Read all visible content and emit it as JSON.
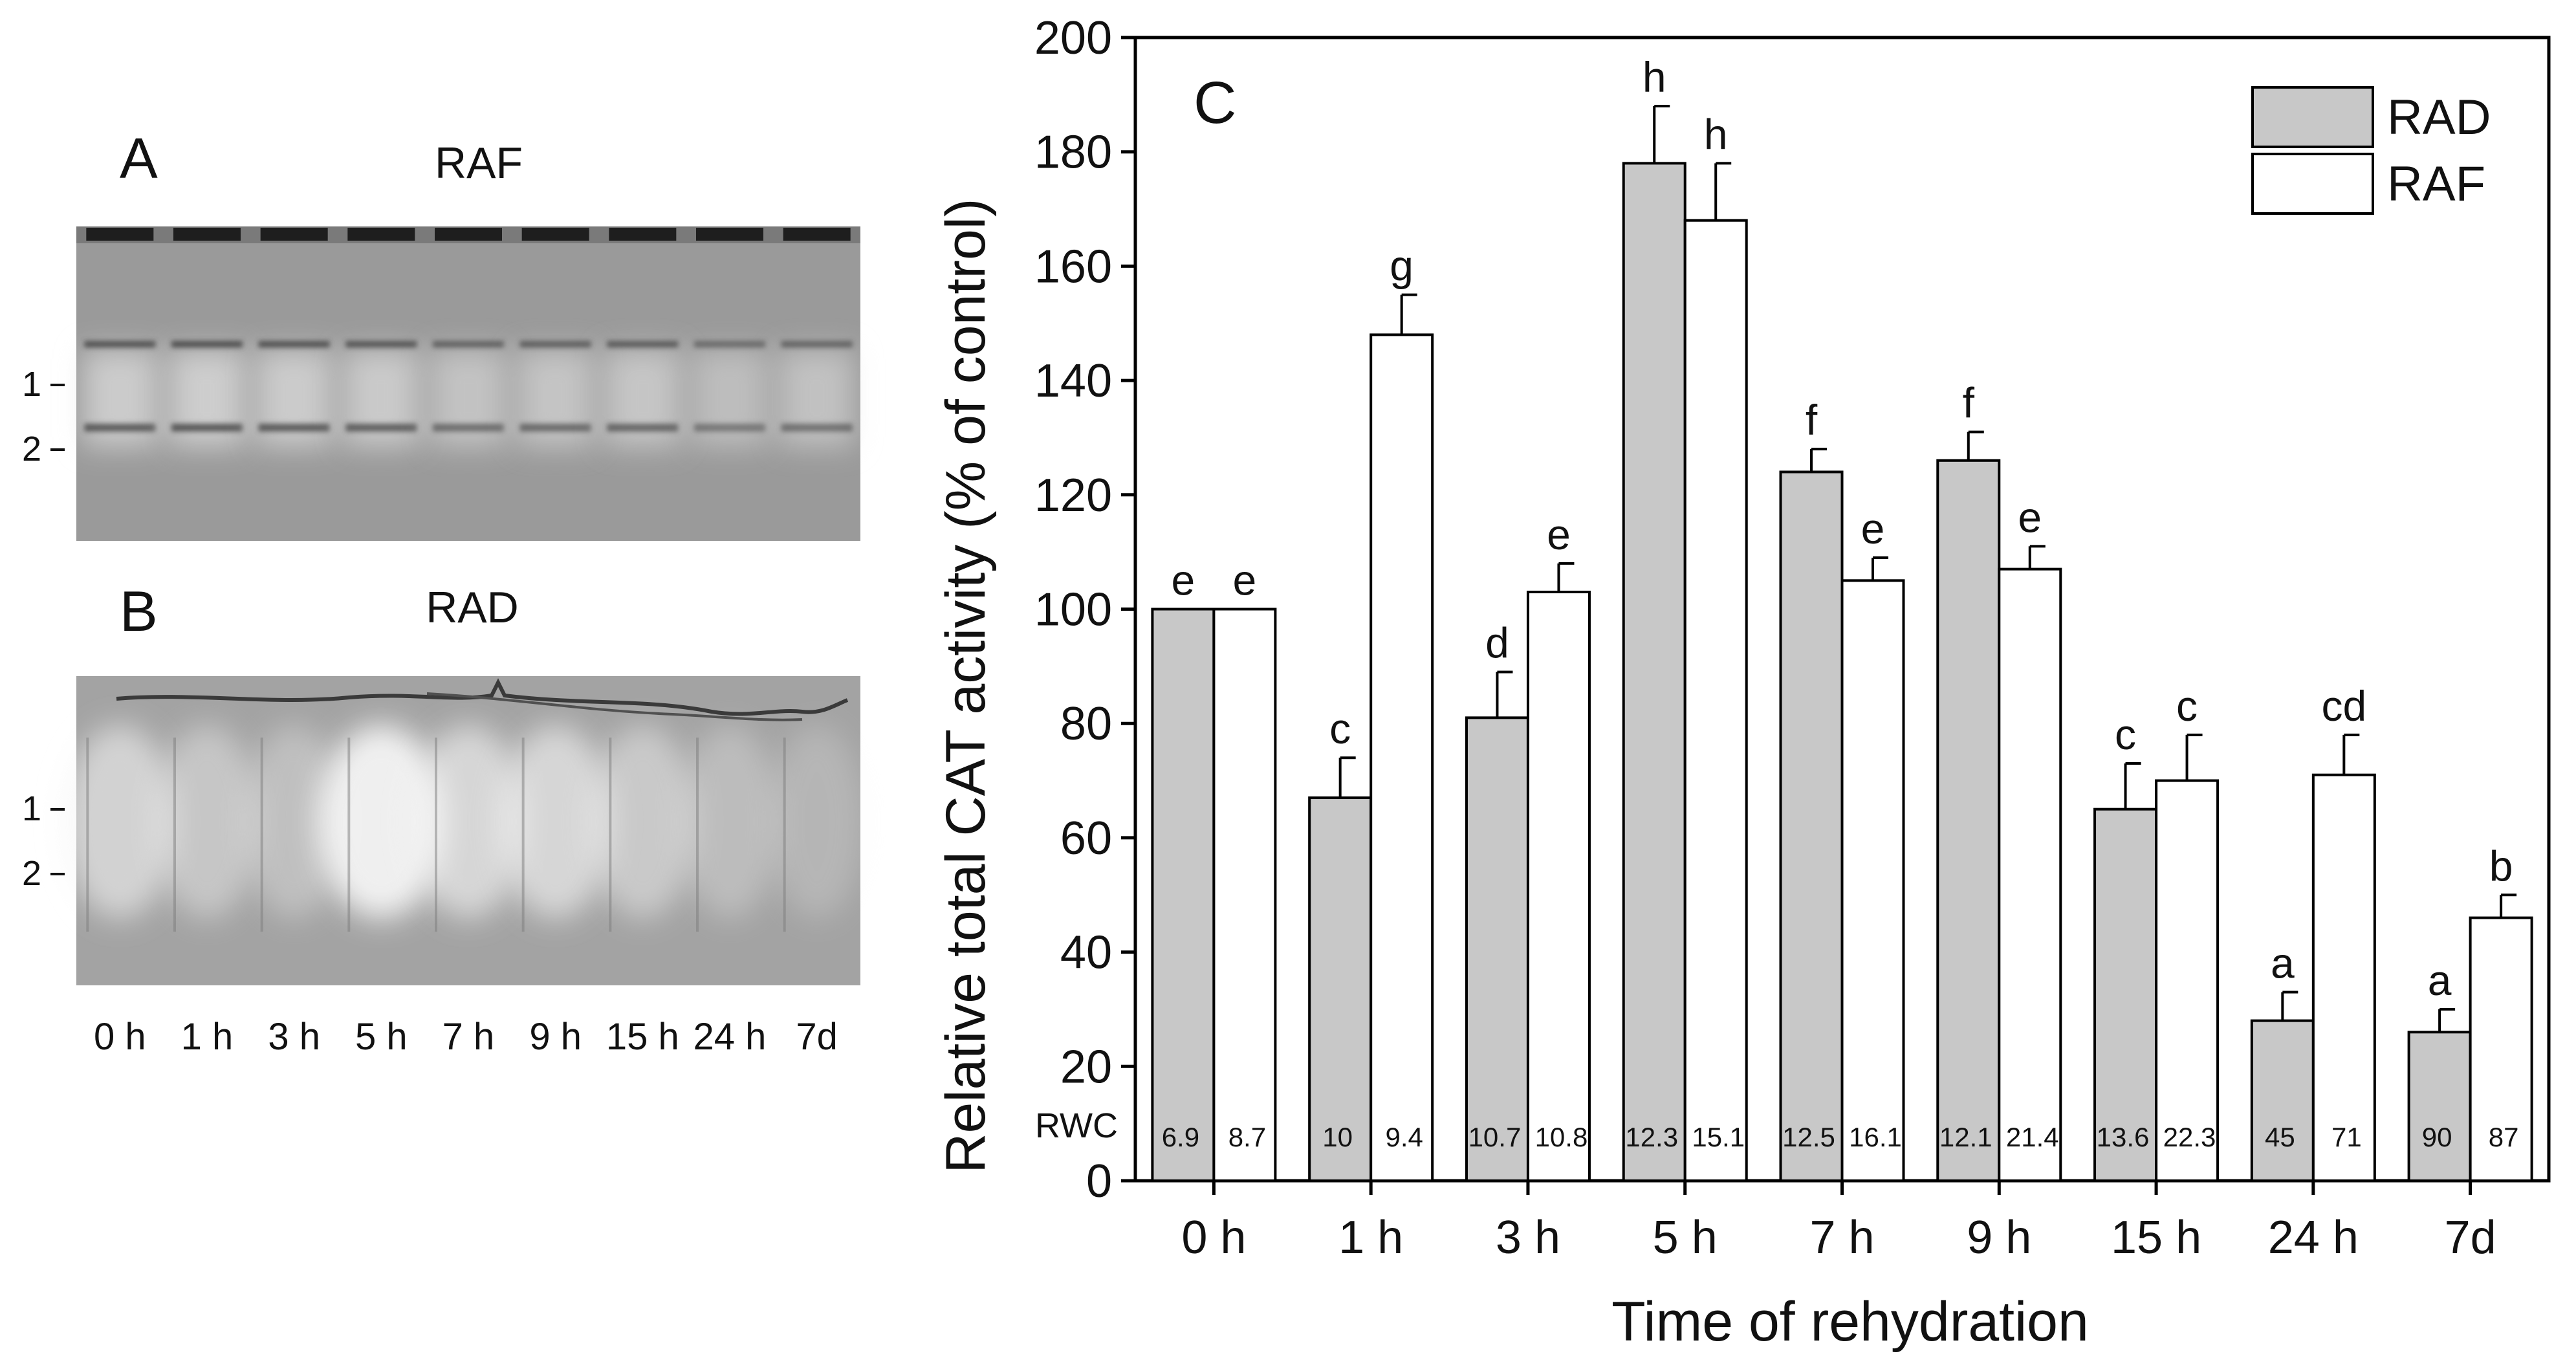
{
  "panel_a": {
    "letter": "A",
    "title": "RAF",
    "band_labels": [
      "1",
      "2"
    ],
    "band_intensity": [
      0.85,
      0.9,
      0.85,
      0.8,
      0.6,
      0.65,
      0.7,
      0.45,
      0.55
    ]
  },
  "panel_b": {
    "letter": "B",
    "title": "RAD",
    "band_labels": [
      "1",
      "2"
    ],
    "smear_intensity": [
      0.55,
      0.35,
      0.25,
      1.0,
      0.6,
      0.6,
      0.4,
      0.2,
      0.1
    ]
  },
  "gel_lanes": [
    "0 h",
    "1 h",
    "3 h",
    "5 h",
    "7 h",
    "9 h",
    "15 h",
    "24 h",
    "7d"
  ],
  "colors": {
    "rad_fill": "#c8c8c8",
    "raf_fill": "#ffffff",
    "gel_bg": "#9b9b9b",
    "gel_band": "#4a4a4a"
  },
  "chart_data": {
    "type": "bar",
    "panel_letter": "C",
    "categories": [
      "0 h",
      "1 h",
      "3 h",
      "5 h",
      "7 h",
      "9 h",
      "15 h",
      "24 h",
      "7d"
    ],
    "series": [
      {
        "name": "RAD",
        "values": [
          100,
          67,
          81,
          178,
          124,
          126,
          65,
          28,
          26
        ],
        "errors": [
          0,
          7,
          8,
          10,
          4,
          5,
          8,
          5,
          4
        ],
        "letters": [
          "e",
          "c",
          "d",
          "h",
          "f",
          "f",
          "c",
          "a",
          "a"
        ],
        "rwc": [
          "6.9",
          "10",
          "10.7",
          "12.3",
          "12.5",
          "12.1",
          "13.6",
          "45",
          "90"
        ]
      },
      {
        "name": "RAF",
        "values": [
          100,
          148,
          103,
          168,
          105,
          107,
          70,
          71,
          46
        ],
        "errors": [
          0,
          7,
          5,
          10,
          4,
          4,
          8,
          7,
          4
        ],
        "letters": [
          "e",
          "g",
          "e",
          "h",
          "e",
          "e",
          "c",
          "cd",
          "b"
        ],
        "rwc": [
          "8.7",
          "9.4",
          "10.8",
          "15.1",
          "16.1",
          "21.4",
          "22.3",
          "71",
          "87"
        ]
      }
    ],
    "rwc_label": "RWC",
    "xlabel": "Time of rehydration",
    "ylabel": "Relative total CAT activity (% of control)",
    "ylim": [
      0,
      200
    ],
    "yticks": [
      0,
      20,
      40,
      60,
      80,
      100,
      120,
      140,
      160,
      180,
      200
    ],
    "legend": [
      "RAD",
      "RAF"
    ],
    "legend_position": "top-right"
  }
}
